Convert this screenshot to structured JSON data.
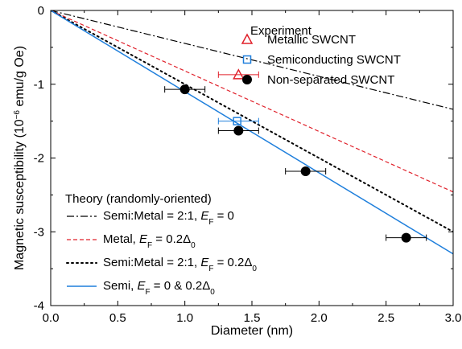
{
  "chart_data": {
    "type": "scatter",
    "xlabel": "Diameter (nm)",
    "ylabel_parts": [
      "Magnetic susceptibility (10",
      "−6",
      " emu/g Oe)"
    ],
    "xlim": [
      0.0,
      3.0
    ],
    "ylim": [
      -4,
      0
    ],
    "xticks": [
      0.0,
      0.5,
      1.0,
      1.5,
      2.0,
      2.5,
      3.0
    ],
    "xtick_labels": [
      "0.0",
      "0.5",
      "1.0",
      "1.5",
      "2.0",
      "2.5",
      "3.0"
    ],
    "yticks": [
      0,
      -1,
      -2,
      -3,
      -4
    ],
    "ytick_labels": [
      "0",
      "-1",
      "-2",
      "-3",
      "-4"
    ],
    "grid": false,
    "experiment_legend": {
      "title": "Experiment",
      "position": "top-right",
      "entries": [
        "Metallic SWCNT",
        "Semiconducting SWCNT",
        "Non-separated SWCNT"
      ]
    },
    "theory_legend": {
      "title": "Theory (randomly-oriented)",
      "position": "bottom-left",
      "entries": [
        [
          "Semi:Metal = 2:1, ",
          "E",
          "F",
          " = 0",
          ""
        ],
        [
          "Metal, ",
          "E",
          "F",
          " = 0.2Δ",
          "0"
        ],
        [
          "Semi:Metal = 2:1, ",
          "E",
          "F",
          " = 0.2Δ",
          "0"
        ],
        [
          "Semi, ",
          "E",
          "F",
          " = 0 & 0.2Δ",
          "0"
        ]
      ]
    },
    "lines": [
      {
        "style": "dashdot",
        "color": "#000000",
        "x": [
          0,
          3.0
        ],
        "y": [
          0,
          -1.34
        ]
      },
      {
        "style": "dashed",
        "color": "#e0202a",
        "x": [
          0,
          3.0
        ],
        "y": [
          0,
          -2.46
        ]
      },
      {
        "style": "dotted",
        "color": "#000000",
        "x": [
          0,
          3.0
        ],
        "y": [
          0,
          -3.0
        ]
      },
      {
        "style": "solid",
        "color": "#1f7fdc",
        "x": [
          0,
          3.0
        ],
        "y": [
          0,
          -3.3
        ]
      }
    ],
    "experiment_series": [
      {
        "marker": "triangle-open",
        "color": "#e0202a",
        "points": [
          {
            "x": 1.4,
            "y": -0.87,
            "xerr": [
              1.25,
              1.55
            ]
          }
        ]
      },
      {
        "marker": "square-open",
        "color": "#1f7fdc",
        "points": [
          {
            "x": 1.39,
            "y": -1.5,
            "xerr": [
              1.25,
              1.55
            ]
          }
        ]
      },
      {
        "marker": "circle-filled",
        "color": "#000000",
        "points": [
          {
            "x": 1.0,
            "y": -1.07,
            "xerr": [
              0.85,
              1.15
            ]
          },
          {
            "x": 1.4,
            "y": -1.63,
            "xerr": [
              1.25,
              1.55
            ]
          },
          {
            "x": 1.9,
            "y": -2.18,
            "xerr": [
              1.75,
              2.05
            ]
          },
          {
            "x": 2.65,
            "y": -3.08,
            "xerr": [
              2.5,
              2.8
            ]
          }
        ]
      }
    ]
  }
}
